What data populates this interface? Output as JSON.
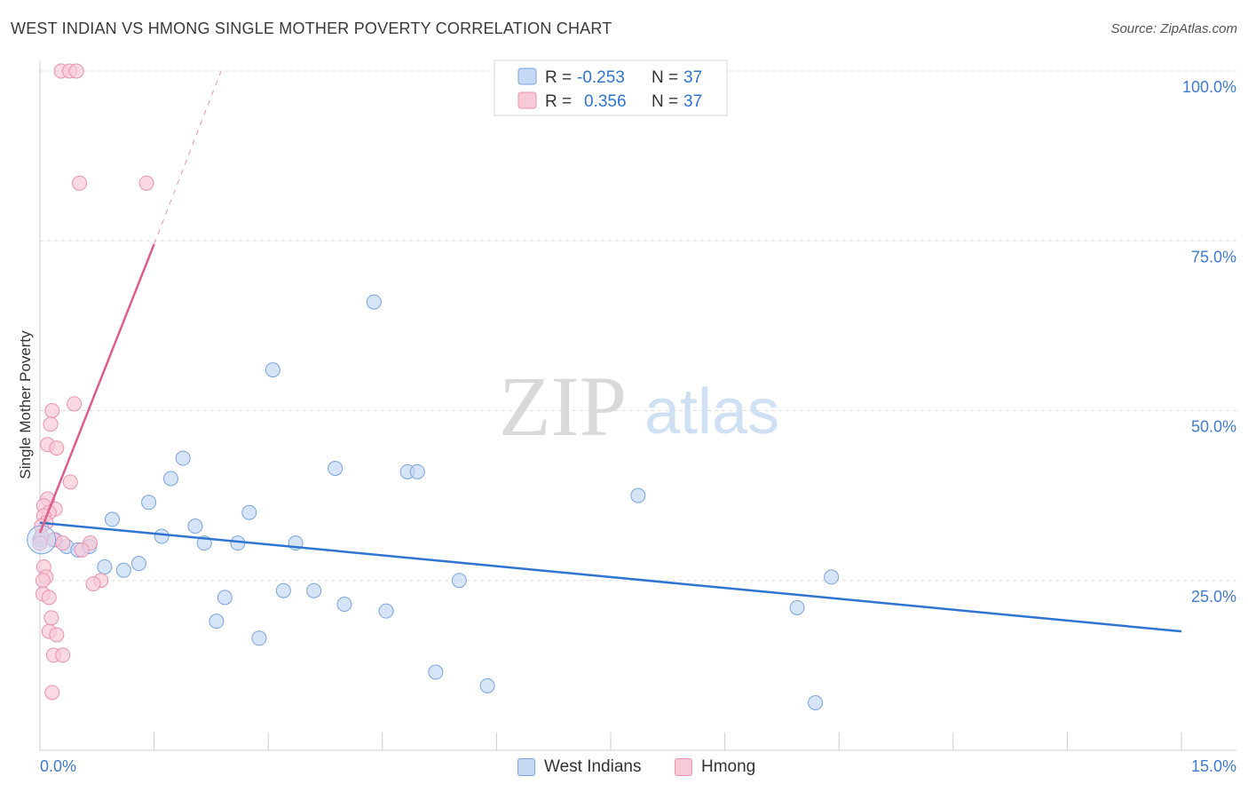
{
  "header": {
    "title": "WEST INDIAN VS HMONG SINGLE MOTHER POVERTY CORRELATION CHART",
    "source": "Source: ZipAtlas.com"
  },
  "watermark": {
    "zip": "ZIP",
    "atlas": "atlas"
  },
  "colors": {
    "blue_fill": "#c5d9f5",
    "blue_stroke": "#7aa3de",
    "blue_line": "#2f74d0",
    "pink_fill": "#f8c9d7",
    "pink_stroke": "#ea92ad",
    "pink_line": "#e05c8a",
    "grid": "#dddddd",
    "axis_text": "#3f7bd1"
  },
  "legend_top": {
    "rows": [
      {
        "r_label": "R =",
        "r_value": "-0.253",
        "n_label": "N =",
        "n_value": "37",
        "series": "blue"
      },
      {
        "r_label": "R =",
        "r_value": "0.356",
        "n_label": "N =",
        "n_value": "37",
        "series": "pink"
      }
    ]
  },
  "legend_bottom": {
    "items": [
      "West Indians",
      "Hmong"
    ]
  },
  "chart_data": {
    "type": "scatter",
    "title": "WEST INDIAN VS HMONG SINGLE MOTHER POVERTY CORRELATION CHART",
    "xlabel": "",
    "ylabel": "Single Mother Poverty",
    "xlim": [
      0,
      15
    ],
    "ylim": [
      0,
      100
    ],
    "x_tick_labels": [
      "0.0%",
      "15.0%"
    ],
    "y_tick_labels": [
      "100.0%",
      "75.0%",
      "50.0%",
      "25.0%"
    ],
    "y_ticks": [
      100,
      75,
      50,
      25
    ],
    "series": [
      {
        "name": "West Indians",
        "color": "#7aa3de",
        "r": -0.253,
        "n": 37,
        "trend": {
          "x0": 0,
          "y0": 33.5,
          "x1": 15,
          "y1": 17.5,
          "style": "solid"
        },
        "points": [
          [
            0.0,
            31.0
          ],
          [
            0.2,
            31.0
          ],
          [
            0.35,
            30.0
          ],
          [
            0.5,
            29.5
          ],
          [
            0.65,
            30.0
          ],
          [
            0.85,
            27.0
          ],
          [
            0.95,
            34.0
          ],
          [
            1.1,
            26.5
          ],
          [
            1.3,
            27.5
          ],
          [
            1.43,
            36.5
          ],
          [
            1.6,
            31.5
          ],
          [
            1.72,
            40.0
          ],
          [
            1.88,
            43.0
          ],
          [
            2.04,
            33.0
          ],
          [
            2.16,
            30.5
          ],
          [
            2.43,
            22.5
          ],
          [
            2.32,
            19.0
          ],
          [
            2.6,
            30.5
          ],
          [
            2.75,
            35.0
          ],
          [
            2.88,
            16.5
          ],
          [
            3.06,
            56.0
          ],
          [
            3.2,
            23.5
          ],
          [
            3.36,
            30.5
          ],
          [
            3.6,
            23.5
          ],
          [
            3.88,
            41.5
          ],
          [
            4.0,
            21.5
          ],
          [
            4.39,
            66.0
          ],
          [
            4.55,
            20.5
          ],
          [
            4.83,
            41.0
          ],
          [
            4.96,
            41.0
          ],
          [
            5.2,
            11.5
          ],
          [
            5.51,
            25.0
          ],
          [
            5.88,
            9.5
          ],
          [
            7.86,
            37.5
          ],
          [
            9.95,
            21.0
          ],
          [
            10.4,
            25.5
          ],
          [
            10.19,
            7.0
          ]
        ]
      },
      {
        "name": "Hmong",
        "color": "#ea92ad",
        "r": 0.356,
        "n": 37,
        "trend": {
          "x0": 0,
          "y0": 32.0,
          "x1": 1.5,
          "y1": 74.5,
          "style": "solid",
          "dash_to": {
            "x": 2.38,
            "y": 100
          }
        },
        "points": [
          [
            0.28,
            100.0
          ],
          [
            0.39,
            100.0
          ],
          [
            0.48,
            100.0
          ],
          [
            0.52,
            83.5
          ],
          [
            1.4,
            83.5
          ],
          [
            0.45,
            51.0
          ],
          [
            0.16,
            50.0
          ],
          [
            0.14,
            48.0
          ],
          [
            0.1,
            45.0
          ],
          [
            0.22,
            44.5
          ],
          [
            0.4,
            39.5
          ],
          [
            0.1,
            37.0
          ],
          [
            0.05,
            36.0
          ],
          [
            0.2,
            35.5
          ],
          [
            0.12,
            35.0
          ],
          [
            0.05,
            34.5
          ],
          [
            0.08,
            33.5
          ],
          [
            0.02,
            33.0
          ],
          [
            0.18,
            31.0
          ],
          [
            0.3,
            30.5
          ],
          [
            0.66,
            30.5
          ],
          [
            0.55,
            29.5
          ],
          [
            0.05,
            27.0
          ],
          [
            0.08,
            25.5
          ],
          [
            0.04,
            25.0
          ],
          [
            0.8,
            25.0
          ],
          [
            0.7,
            24.5
          ],
          [
            0.04,
            23.0
          ],
          [
            0.12,
            22.5
          ],
          [
            0.15,
            19.5
          ],
          [
            0.12,
            17.5
          ],
          [
            0.22,
            17.0
          ],
          [
            0.18,
            14.0
          ],
          [
            0.3,
            14.0
          ],
          [
            0.16,
            8.5
          ],
          [
            0.02,
            31.5
          ],
          [
            0.0,
            30.5
          ]
        ]
      }
    ]
  }
}
